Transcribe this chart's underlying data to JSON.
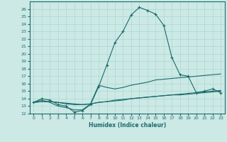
{
  "xlabel": "Humidex (Indice chaleur)",
  "xlim": [
    -0.5,
    23.5
  ],
  "ylim": [
    12,
    27
  ],
  "yticks": [
    12,
    13,
    14,
    15,
    16,
    17,
    18,
    19,
    20,
    21,
    22,
    23,
    24,
    25,
    26
  ],
  "xticks": [
    0,
    1,
    2,
    3,
    4,
    5,
    6,
    7,
    8,
    9,
    10,
    11,
    12,
    13,
    14,
    15,
    16,
    17,
    18,
    19,
    20,
    21,
    22,
    23
  ],
  "bg_color": "#cce9e5",
  "line_color": "#1a6b6b",
  "grid_color": "#aad8d3",
  "curves": [
    {
      "x": [
        0,
        1,
        2,
        3,
        4,
        5,
        6,
        7,
        8,
        9,
        10,
        11,
        12,
        13,
        14,
        15,
        16,
        17,
        18,
        19,
        20,
        21,
        22,
        23
      ],
      "y": [
        13.5,
        14.0,
        13.8,
        13.2,
        13.0,
        12.2,
        12.4,
        13.2,
        15.6,
        18.5,
        21.5,
        23.0,
        25.2,
        26.2,
        25.8,
        25.3,
        23.8,
        19.5,
        17.2,
        17.0,
        14.8,
        15.0,
        15.3,
        14.8
      ],
      "has_markers": true
    },
    {
      "x": [
        0,
        1,
        2,
        3,
        4,
        5,
        6,
        7,
        8,
        9,
        10,
        11,
        12,
        13,
        14,
        15,
        16,
        17,
        18,
        19,
        20,
        21,
        22,
        23
      ],
      "y": [
        13.5,
        13.8,
        13.5,
        13.0,
        12.8,
        12.5,
        12.5,
        13.3,
        15.8,
        15.5,
        15.3,
        15.5,
        15.8,
        16.0,
        16.2,
        16.5,
        16.6,
        16.7,
        16.8,
        16.9,
        17.0,
        17.1,
        17.2,
        17.3
      ],
      "has_markers": false
    },
    {
      "x": [
        0,
        1,
        2,
        3,
        4,
        5,
        6,
        7,
        8,
        9,
        10,
        11,
        12,
        13,
        14,
        15,
        16,
        17,
        18,
        19,
        20,
        21,
        22,
        23
      ],
      "y": [
        13.5,
        13.6,
        13.6,
        13.5,
        13.4,
        13.3,
        13.2,
        13.3,
        13.5,
        13.6,
        13.7,
        13.8,
        14.0,
        14.1,
        14.2,
        14.3,
        14.4,
        14.5,
        14.5,
        14.6,
        14.7,
        14.8,
        14.9,
        15.0
      ],
      "has_markers": false
    },
    {
      "x": [
        0,
        1,
        2,
        3,
        4,
        5,
        6,
        7,
        8,
        9,
        10,
        11,
        12,
        13,
        14,
        15,
        16,
        17,
        18,
        19,
        20,
        21,
        22,
        23
      ],
      "y": [
        13.5,
        13.6,
        13.6,
        13.5,
        13.3,
        13.2,
        13.2,
        13.3,
        13.5,
        13.6,
        13.8,
        13.9,
        14.0,
        14.1,
        14.2,
        14.3,
        14.4,
        14.5,
        14.6,
        14.7,
        14.8,
        14.9,
        15.0,
        15.1
      ],
      "has_markers": false
    }
  ]
}
